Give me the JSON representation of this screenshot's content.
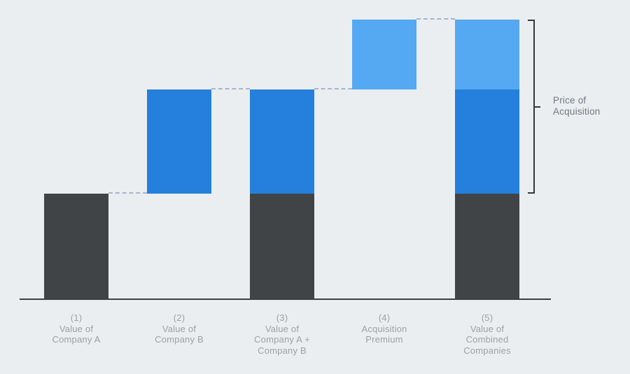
{
  "chart_data": {
    "type": "bar",
    "subtype": "waterfall",
    "title": "",
    "xlabel": "",
    "ylabel": "",
    "legend": "none",
    "grid": false,
    "axis_numeric_labels": false,
    "ylim": [
      0,
      420
    ],
    "categories": [
      "(1) Value of Company A",
      "(2) Value of Company B",
      "(3) Value of Company A + Company B",
      "(4) Acquisition Premium",
      "(5) Value of Combined Companies"
    ],
    "bars": [
      {
        "category_lines": "(1)\nValue of\nCompany A",
        "base": 0,
        "segments": [
          {
            "color": "dark",
            "value": 150
          }
        ]
      },
      {
        "category_lines": "(2)\nValue of\nCompany B",
        "base": 150,
        "segments": [
          {
            "color": "blue",
            "value": 149
          }
        ]
      },
      {
        "category_lines": "(3)\nValue of\nCompany A +\nCompany B",
        "base": 0,
        "segments": [
          {
            "color": "dark",
            "value": 150
          },
          {
            "color": "blue",
            "value": 149
          }
        ]
      },
      {
        "category_lines": "(4)\nAcquisition\nPremium",
        "base": 299,
        "segments": [
          {
            "color": "lightblue",
            "value": 100
          }
        ]
      },
      {
        "category_lines": "(5)\nValue of\nCombined\nCompanies",
        "base": 0,
        "segments": [
          {
            "color": "dark",
            "value": 150
          },
          {
            "color": "blue",
            "value": 149
          },
          {
            "color": "lightblue",
            "value": 100
          }
        ]
      }
    ],
    "connectors": [
      {
        "between": [
          1,
          2
        ],
        "level": 150
      },
      {
        "between": [
          2,
          3
        ],
        "level": 299
      },
      {
        "between": [
          3,
          4
        ],
        "level": 299
      },
      {
        "between": [
          4,
          5
        ],
        "level": 399
      }
    ],
    "annotation": {
      "text": "Price of\nAcquisition",
      "from_level": 150,
      "to_level": 399
    },
    "colors": {
      "background": "#ebeef0",
      "dark": "#414447",
      "blue": "#2480dc",
      "lightblue": "#55a9f2",
      "dashed": "#a5b5cb",
      "axis": "#3c4043",
      "bracket": "#33383c",
      "category_label": "#9aa1a9",
      "annotation_label": "#6f7983"
    }
  }
}
